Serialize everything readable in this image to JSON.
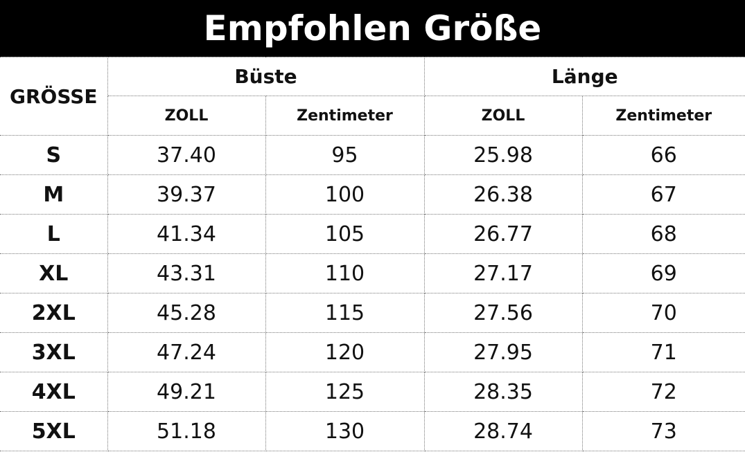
{
  "header": {
    "title": "Empfohlen Größe"
  },
  "table": {
    "size_header": "GRÖSSE",
    "groups": [
      "Büste",
      "Länge"
    ],
    "units": [
      "ZOLL",
      "Zentimeter",
      "ZOLL",
      "Zentimeter"
    ],
    "rows": [
      [
        "S",
        "37.40",
        "95",
        "25.98",
        "66"
      ],
      [
        "M",
        "39.37",
        "100",
        "26.38",
        "67"
      ],
      [
        "L",
        "41.34",
        "105",
        "26.77",
        "68"
      ],
      [
        "XL",
        "43.31",
        "110",
        "27.17",
        "69"
      ],
      [
        "2XL",
        "45.28",
        "115",
        "27.56",
        "70"
      ],
      [
        "3XL",
        "47.24",
        "120",
        "27.95",
        "71"
      ],
      [
        "4XL",
        "49.21",
        "125",
        "28.35",
        "72"
      ],
      [
        "5XL",
        "51.18",
        "130",
        "28.74",
        "73"
      ]
    ]
  }
}
